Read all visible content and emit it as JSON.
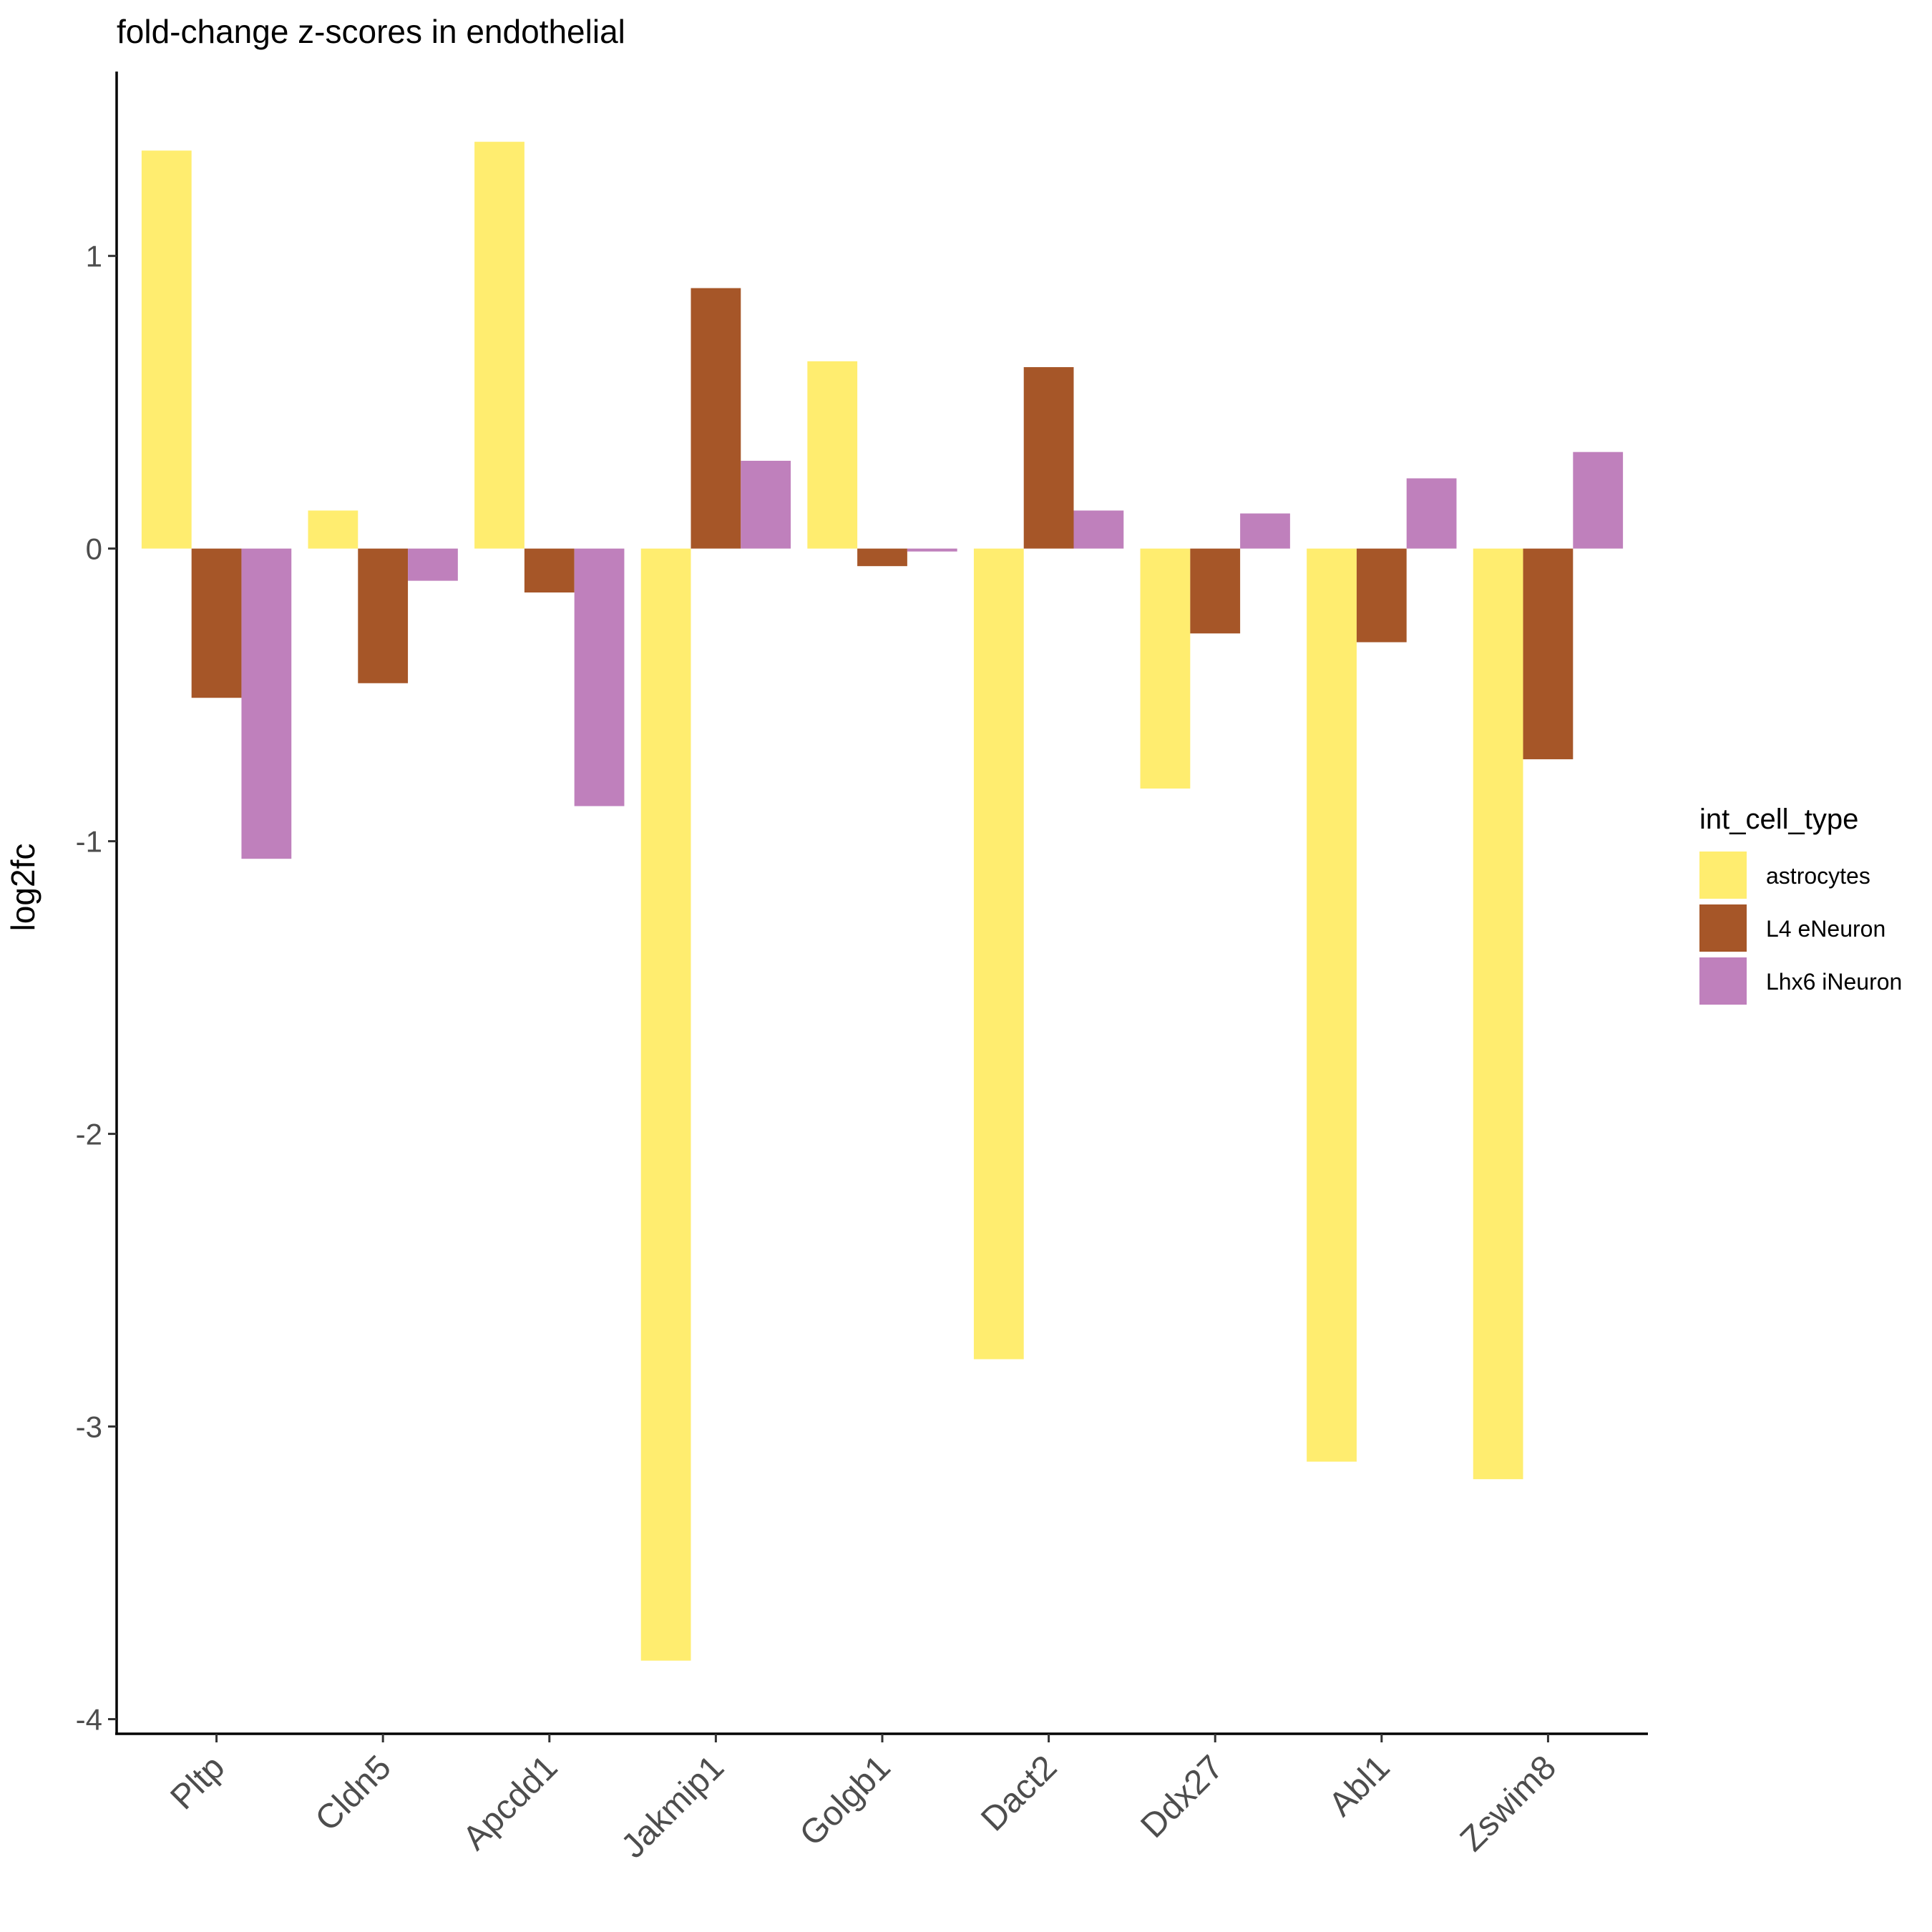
{
  "chart_data": {
    "type": "bar",
    "title": "fold-change z-scores in endothelial",
    "xlabel": "",
    "ylabel": "log2fc",
    "ylim": [
      -4.05,
      1.63
    ],
    "yticks": [
      1,
      0,
      -1,
      -2,
      -3,
      -4
    ],
    "ytick_labels": [
      "1",
      "0",
      "-1",
      "-2",
      "-3",
      "-4"
    ],
    "categories": [
      "Pltp",
      "Cldn5",
      "Apcdd1",
      "Jakmip1",
      "Golgb1",
      "Dact2",
      "Ddx27",
      "Abl1",
      "Zswim8"
    ],
    "series": [
      {
        "name": "astrocytes",
        "color": "#FFED6F",
        "values": [
          1.36,
          0.13,
          1.39,
          -3.8,
          0.64,
          -2.77,
          -0.82,
          -3.12,
          -3.18
        ]
      },
      {
        "name": "L4 eNeuron",
        "color": "#A65628",
        "values": [
          -0.51,
          -0.46,
          -0.15,
          0.89,
          -0.06,
          0.62,
          -0.29,
          -0.32,
          -0.72
        ]
      },
      {
        "name": "Lhx6 iNeuron",
        "color": "#BF80BC",
        "values": [
          -1.06,
          -0.11,
          -0.88,
          0.3,
          -0.01,
          0.13,
          0.12,
          0.24,
          0.33
        ]
      }
    ],
    "legend": {
      "title": "int_cell_type",
      "position": "right"
    },
    "grid": false
  }
}
